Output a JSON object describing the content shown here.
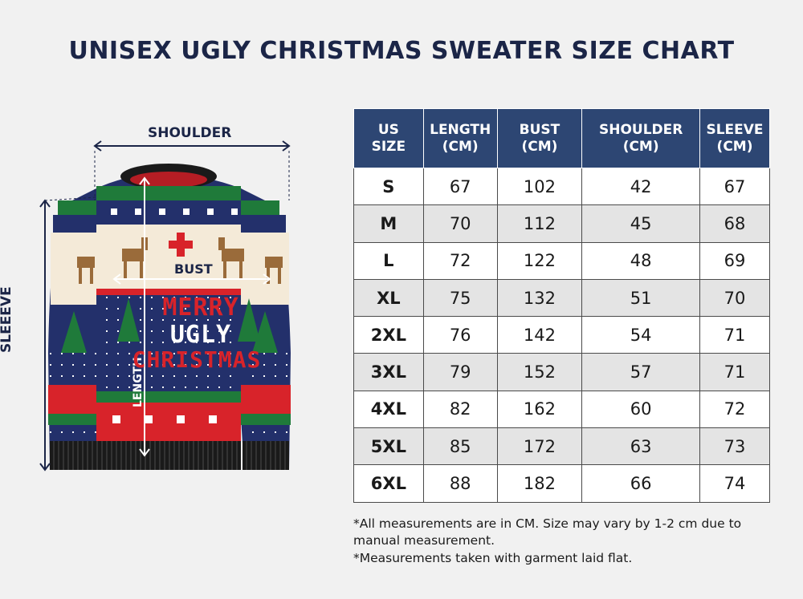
{
  "title": "UNISEX UGLY CHRISTMAS SWEATER SIZE CHART",
  "measure_labels": {
    "shoulder": "SHOULDER",
    "sleeve": "SLEEEVE",
    "bust": "BUST",
    "length": "LENGTH"
  },
  "sweater_text": [
    "MERRY",
    "UGLY",
    "CHRISTMAS"
  ],
  "colors": {
    "header_bg": "#2d4673",
    "title": "#1b2547",
    "sweater_navy": "#23306b",
    "sweater_red": "#d8232a",
    "sweater_green": "#1f7a3a",
    "sweater_cream": "#f4ead8"
  },
  "table": {
    "headers": [
      "US\nSIZE",
      "LENGTH\n(CM)",
      "BUST\n(CM)",
      "SHOULDER\n(CM)",
      "SLEEVE\n(CM)"
    ],
    "rows": [
      [
        "S",
        "67",
        "102",
        "42",
        "67"
      ],
      [
        "M",
        "70",
        "112",
        "45",
        "68"
      ],
      [
        "L",
        "72",
        "122",
        "48",
        "69"
      ],
      [
        "XL",
        "75",
        "132",
        "51",
        "70"
      ],
      [
        "2XL",
        "76",
        "142",
        "54",
        "71"
      ],
      [
        "3XL",
        "79",
        "152",
        "57",
        "71"
      ],
      [
        "4XL",
        "82",
        "162",
        "60",
        "72"
      ],
      [
        "5XL",
        "85",
        "172",
        "63",
        "73"
      ],
      [
        "6XL",
        "88",
        "182",
        "66",
        "74"
      ]
    ]
  },
  "notes": [
    "*All measurements are in CM. Size may vary by 1-2 cm due to manual measurement.",
    "*Measurements taken with garment laid flat."
  ]
}
